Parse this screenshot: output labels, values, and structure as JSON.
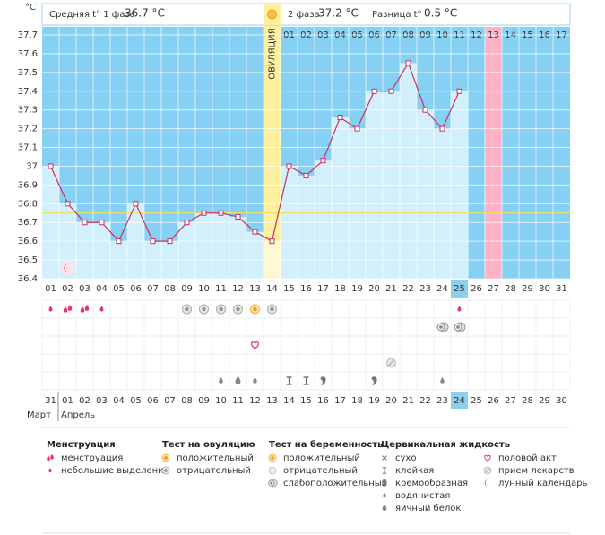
{
  "chart_data": {
    "type": "line",
    "y_unit": "°С",
    "phase1_label": "Средняя t° 1 фаза",
    "phase1_avg": "36.7 °С",
    "phase2_label": "2 фаза",
    "phase2_avg": "37.2 °С",
    "diff_label": "Разница t°",
    "diff_value": "0.5 °С",
    "ovulation_label": "ОВУЛЯЦИЯ",
    "ovulation_day": "14",
    "today": "25",
    "expected_period": "13",
    "categories": [
      "01",
      "02",
      "03",
      "04",
      "05",
      "06",
      "07",
      "08",
      "09",
      "10",
      "11",
      "12",
      "13",
      "14",
      "15",
      "16",
      "17",
      "18",
      "19",
      "20",
      "21",
      "22",
      "23",
      "24",
      "25",
      "26",
      "27",
      "28",
      "29",
      "30",
      "31"
    ],
    "values": [
      37.0,
      36.8,
      36.7,
      36.7,
      36.6,
      36.8,
      36.6,
      36.6,
      36.7,
      36.75,
      36.75,
      36.73,
      36.65,
      36.6,
      37.0,
      36.95,
      37.03,
      37.26,
      37.2,
      37.4,
      37.4,
      37.55,
      37.3,
      37.2,
      37.4,
      null,
      null,
      null,
      null,
      null,
      null
    ],
    "phase2_days": [
      "01",
      "02",
      "03",
      "04",
      "05",
      "06",
      "07",
      "08",
      "09",
      "10",
      "11",
      "12",
      "13",
      "14",
      "15",
      "16",
      "17"
    ],
    "coverline": 36.75,
    "ylim": [
      36.4,
      37.7
    ],
    "yticks": [
      36.4,
      36.5,
      36.6,
      36.7,
      36.8,
      36.9,
      37,
      37.1,
      37.2,
      37.3,
      37.4,
      37.5,
      37.6,
      37.7
    ],
    "line_color": "#cc2f5f",
    "grid": true,
    "dates": [
      "31",
      "01",
      "02",
      "03",
      "04",
      "05",
      "06",
      "07",
      "08",
      "09",
      "10",
      "11",
      "12",
      "13",
      "14",
      "15",
      "16",
      "17",
      "18",
      "19",
      "20",
      "21",
      "22",
      "23",
      "24",
      "25",
      "26",
      "27",
      "28",
      "29",
      "30"
    ],
    "weekend_dates": [
      "31",
      "06",
      "07",
      "13",
      "14",
      "20",
      "21",
      "27",
      "28"
    ],
    "months": [
      "Март",
      "Апрель"
    ],
    "legend": [
      {
        "title": "Менструация",
        "items": [
          {
            "label": "менструация",
            "days": [
              "02",
              "03"
            ]
          },
          {
            "label": "небольшие выделения",
            "days": [
              "01",
              "04",
              "25"
            ]
          }
        ]
      },
      {
        "title": "Тест на овуляцию",
        "items": [
          {
            "label": "положительный",
            "days": [
              "13"
            ]
          },
          {
            "label": "отрицательный",
            "days": [
              "09",
              "10",
              "11",
              "12",
              "14"
            ]
          }
        ]
      },
      {
        "title": "Тест на беременность",
        "items": [
          {
            "label": "положительный",
            "days": []
          },
          {
            "label": "отрицательный",
            "days": []
          },
          {
            "label": "слабоположительный",
            "days": [
              "24",
              "25"
            ]
          }
        ]
      },
      {
        "title": "Цервикальная жидкость",
        "items": [
          {
            "label": "сухо",
            "days": []
          },
          {
            "label": "клейкая",
            "days": [
              "15",
              "16"
            ]
          },
          {
            "label": "кремообразная",
            "days": [
              "17",
              "20"
            ]
          },
          {
            "label": "водянистая",
            "days": [
              "11",
              "13",
              "24"
            ]
          },
          {
            "label": "яичный белок",
            "days": [
              "12"
            ]
          }
        ]
      },
      {
        "items": [
          {
            "label": "половой акт",
            "days": [
              "13"
            ]
          },
          {
            "label": "прием лекарств",
            "days": [
              "21"
            ]
          },
          {
            "label": "лунный календарь",
            "days": [
              "02"
            ]
          }
        ]
      }
    ]
  }
}
